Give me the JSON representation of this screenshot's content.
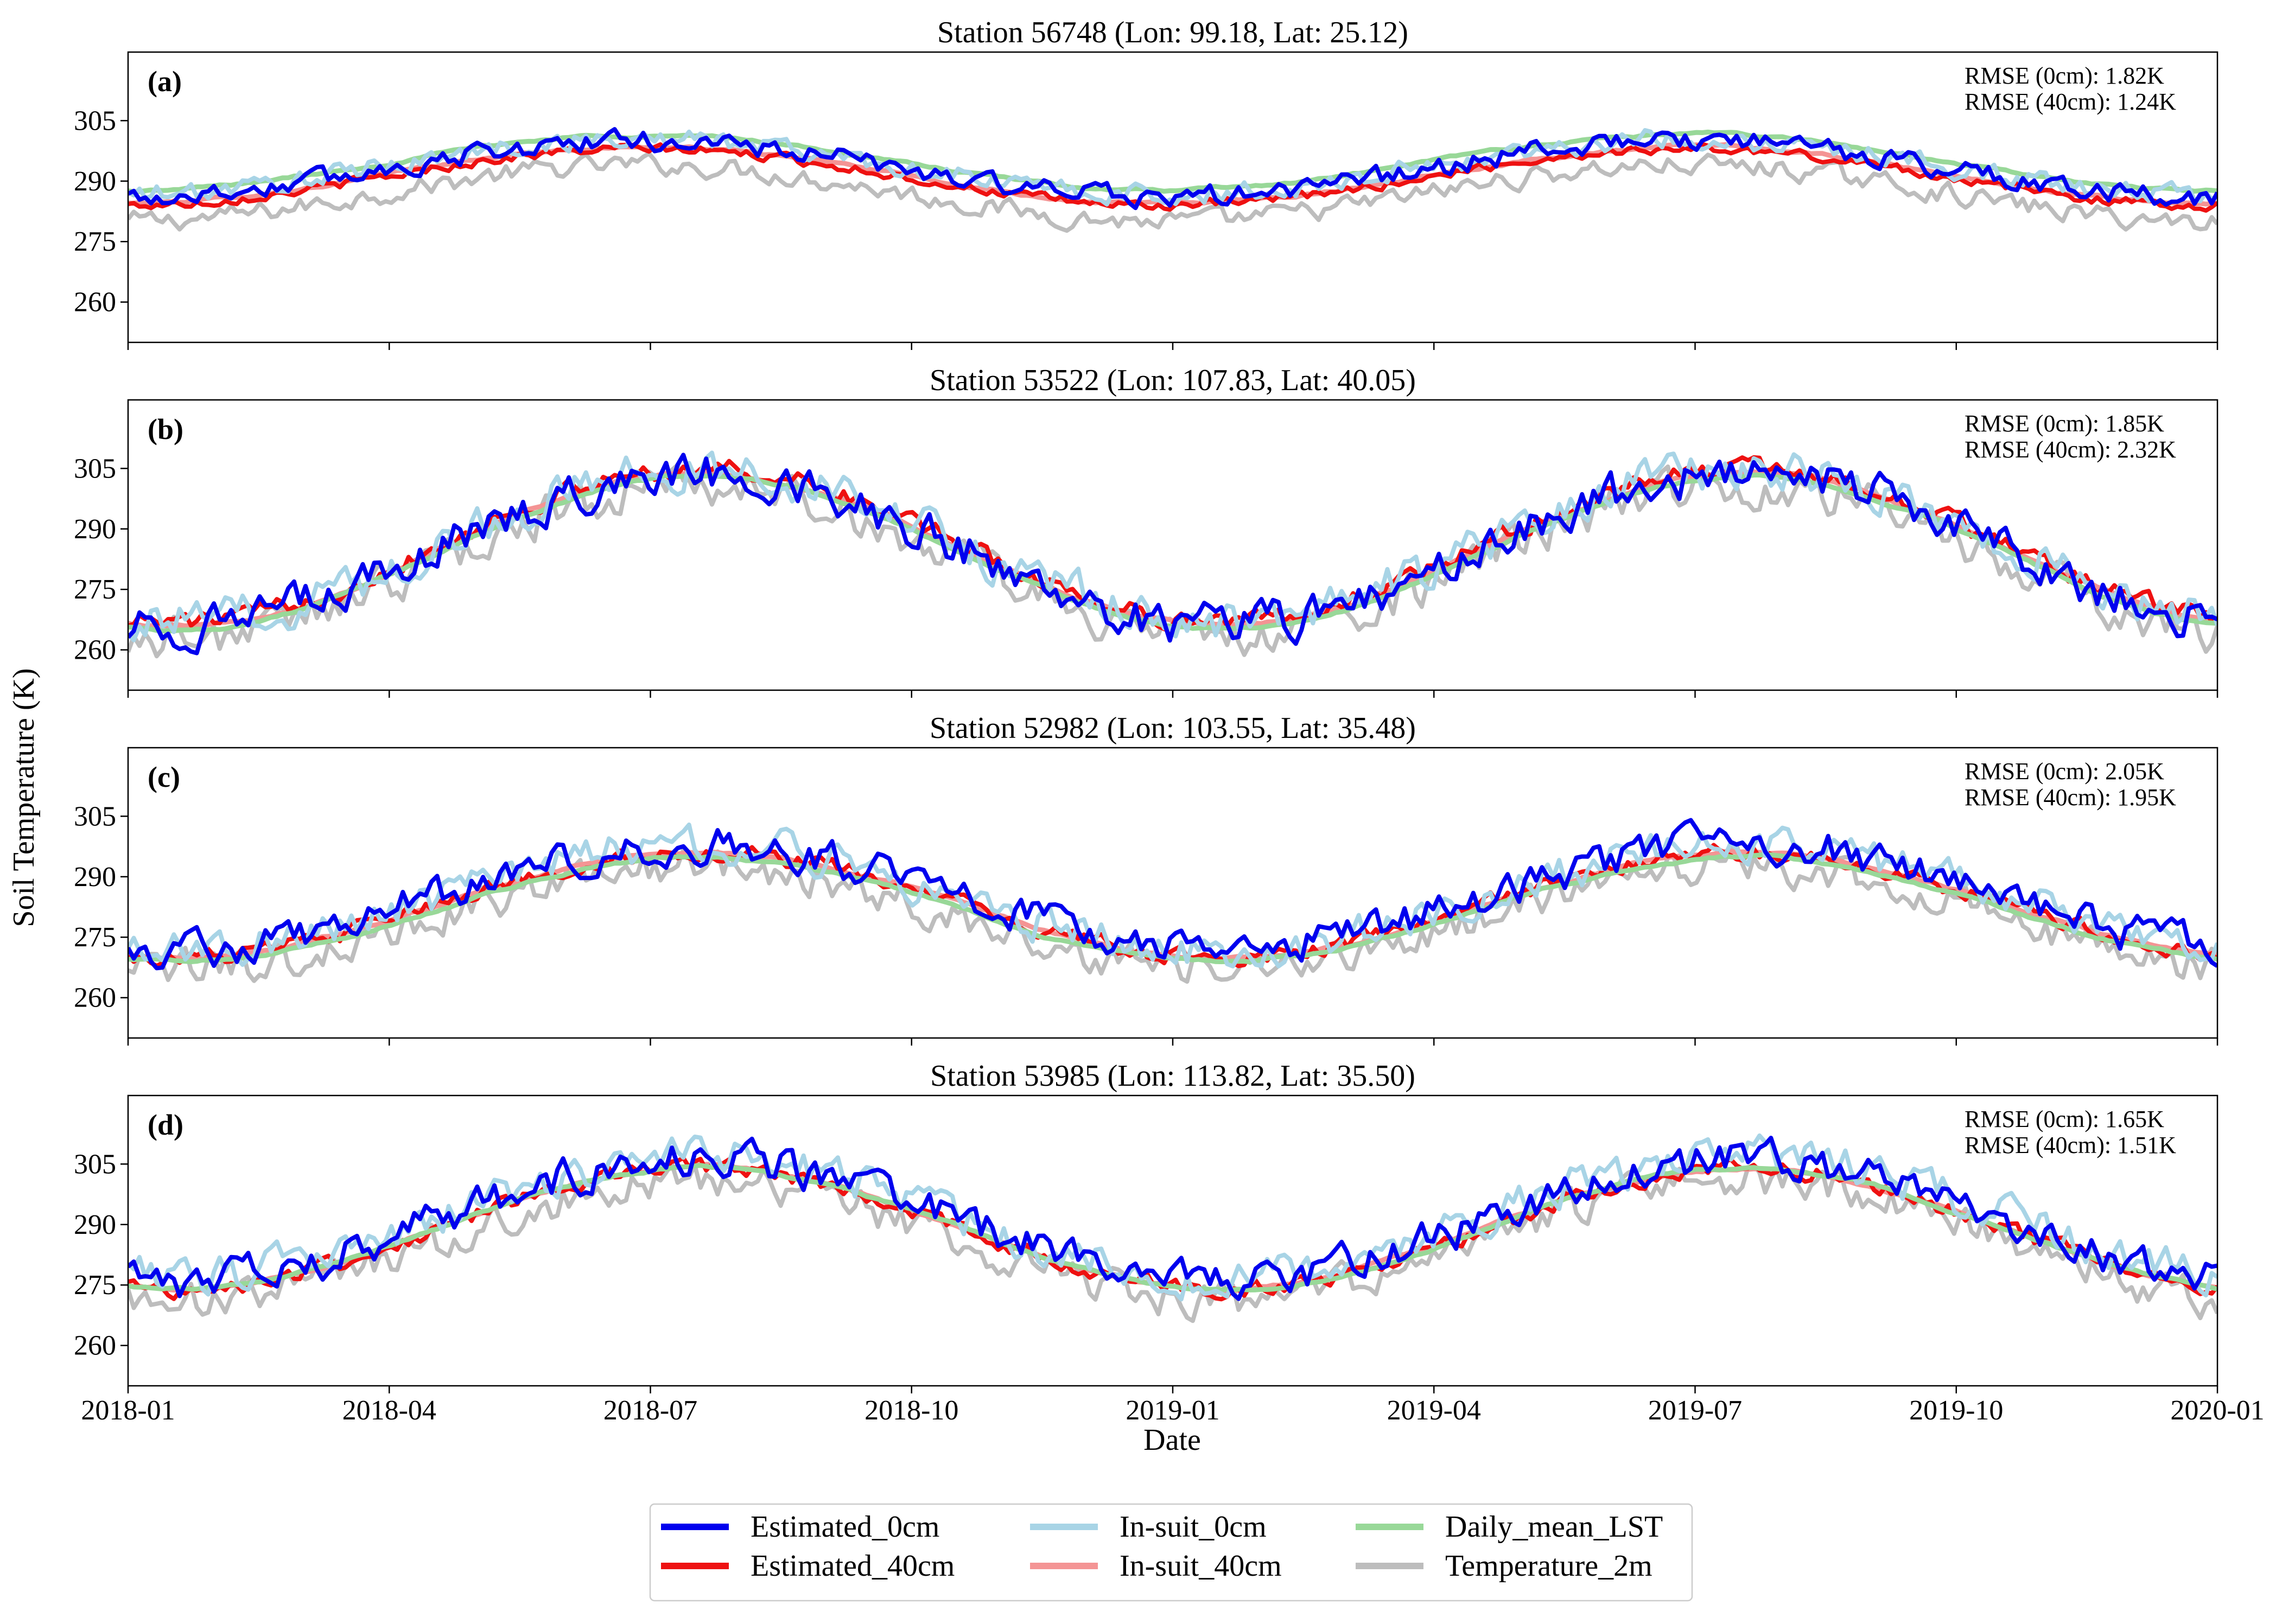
{
  "figure": {
    "ylabel": "Soil Temperature (K)",
    "xlabel": "Date"
  },
  "chart_data": {
    "type": "line",
    "x_axis": {
      "type": "date",
      "range": [
        "2018-01",
        "2020-01"
      ],
      "ticks": [
        "2018-01",
        "2018-04",
        "2018-07",
        "2018-10",
        "2019-01",
        "2019-04",
        "2019-07",
        "2019-10",
        "2020-01"
      ]
    },
    "y_axis": {
      "ticks": [
        260,
        275,
        290,
        305
      ],
      "range": [
        250,
        322
      ]
    },
    "grid": false,
    "legend": {
      "placement": "bottom-center",
      "entries": [
        {
          "name": "Estimated_0cm",
          "color": "#0000ee"
        },
        {
          "name": "In-suit_0cm",
          "color": "#a8d4e6"
        },
        {
          "name": "Daily_mean_LST",
          "color": "#98d898"
        },
        {
          "name": "Estimated_40cm",
          "color": "#ee1111"
        },
        {
          "name": "In-suit_40cm",
          "color": "#f49494"
        },
        {
          "name": "Temperature_2m",
          "color": "#bdbdbd"
        }
      ]
    },
    "panels": [
      {
        "letter": "(a)",
        "title": "Station 56748 (Lon: 99.18, Lat: 25.12)",
        "rmse_0cm": "RMSE (0cm): 1.82K",
        "rmse_40cm": "RMSE (40cm): 1.24K",
        "seasonal": {
          "mean": 293,
          "amplitude": 7,
          "peak_day": 180
        },
        "series_offset": {
          "Estimated_0cm": 0,
          "In-suit_0cm": 0.5,
          "Daily_mean_LST": 1.5,
          "Estimated_40cm": -2,
          "In-suit_40cm": -1.5,
          "Temperature_2m": -6
        },
        "noise": 2.2
      },
      {
        "letter": "(b)",
        "title": "Station 53522 (Lon: 107.83, Lat: 40.05)",
        "rmse_0cm": "RMSE (0cm): 1.85K",
        "rmse_40cm": "RMSE (40cm): 2.32K",
        "seasonal": {
          "mean": 284,
          "amplitude": 19,
          "peak_day": 200
        },
        "series_offset": {
          "Estimated_0cm": 1,
          "In-suit_0cm": 2,
          "Daily_mean_LST": 0,
          "Estimated_40cm": 2,
          "In-suit_40cm": 1,
          "Temperature_2m": -2
        },
        "noise": 4.5
      },
      {
        "letter": "(c)",
        "title": "Station 52982 (Lon: 103.55, Lat: 35.48)",
        "rmse_0cm": "RMSE (0cm): 2.05K",
        "rmse_40cm": "RMSE (40cm): 1.95K",
        "seasonal": {
          "mean": 282,
          "amplitude": 13,
          "peak_day": 200
        },
        "series_offset": {
          "Estimated_0cm": 3,
          "In-suit_0cm": 3,
          "Daily_mean_LST": 0,
          "Estimated_40cm": 1,
          "In-suit_40cm": 1,
          "Temperature_2m": -2
        },
        "noise": 4.0
      },
      {
        "letter": "(d)",
        "title": "Station 53985 (Lon: 113.82, Lat: 35.50)",
        "rmse_0cm": "RMSE (0cm): 1.65K",
        "rmse_40cm": "RMSE (40cm): 1.51K",
        "seasonal": {
          "mean": 289,
          "amplitude": 15,
          "peak_day": 200
        },
        "series_offset": {
          "Estimated_0cm": 2,
          "In-suit_0cm": 3,
          "Daily_mean_LST": 0,
          "Estimated_40cm": 0,
          "In-suit_40cm": 0,
          "Temperature_2m": -3
        },
        "noise": 4.0
      }
    ]
  }
}
